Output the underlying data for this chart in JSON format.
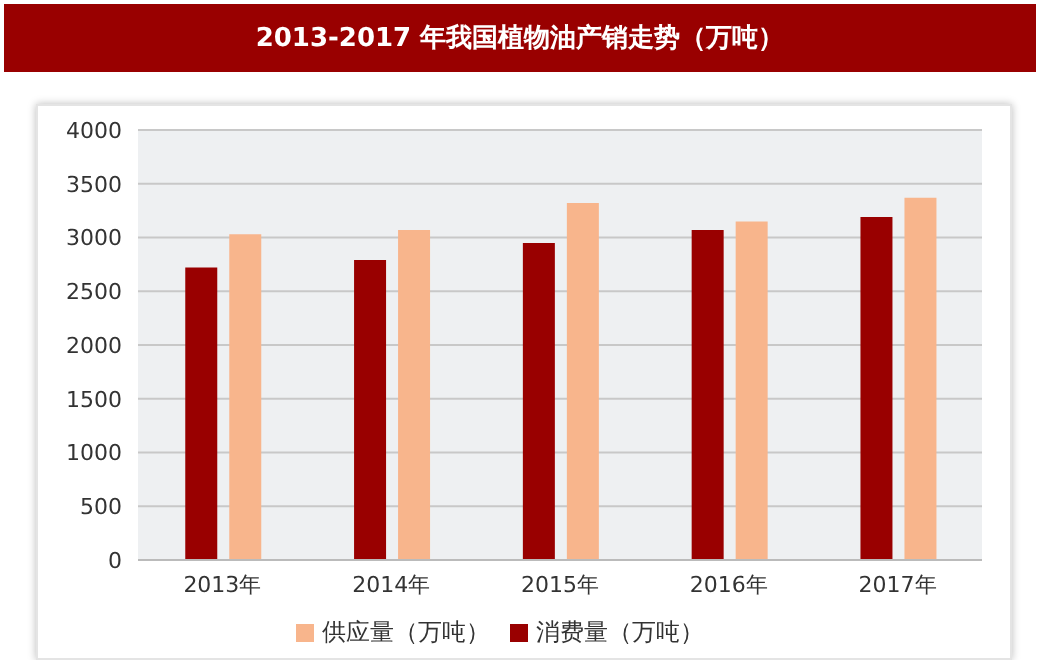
{
  "chart_data": {
    "type": "bar",
    "title": "2013-2017 年我国植物油产销走势（万吨）",
    "categories": [
      "2013年",
      "2014年",
      "2015年",
      "2016年",
      "2017年"
    ],
    "series": [
      {
        "name": "消费量（万吨）",
        "color": "#990000",
        "values": [
          2720,
          2790,
          2950,
          3070,
          3190
        ]
      },
      {
        "name": "供应量（万吨）",
        "color": "#f8b58c",
        "values": [
          3030,
          3070,
          3320,
          3150,
          3370
        ]
      }
    ],
    "ylim": [
      0,
      4000
    ],
    "yticks": [
      0,
      500,
      1000,
      1500,
      2000,
      2500,
      3000,
      3500,
      4000
    ],
    "grid": "y",
    "legend": "bottom"
  }
}
